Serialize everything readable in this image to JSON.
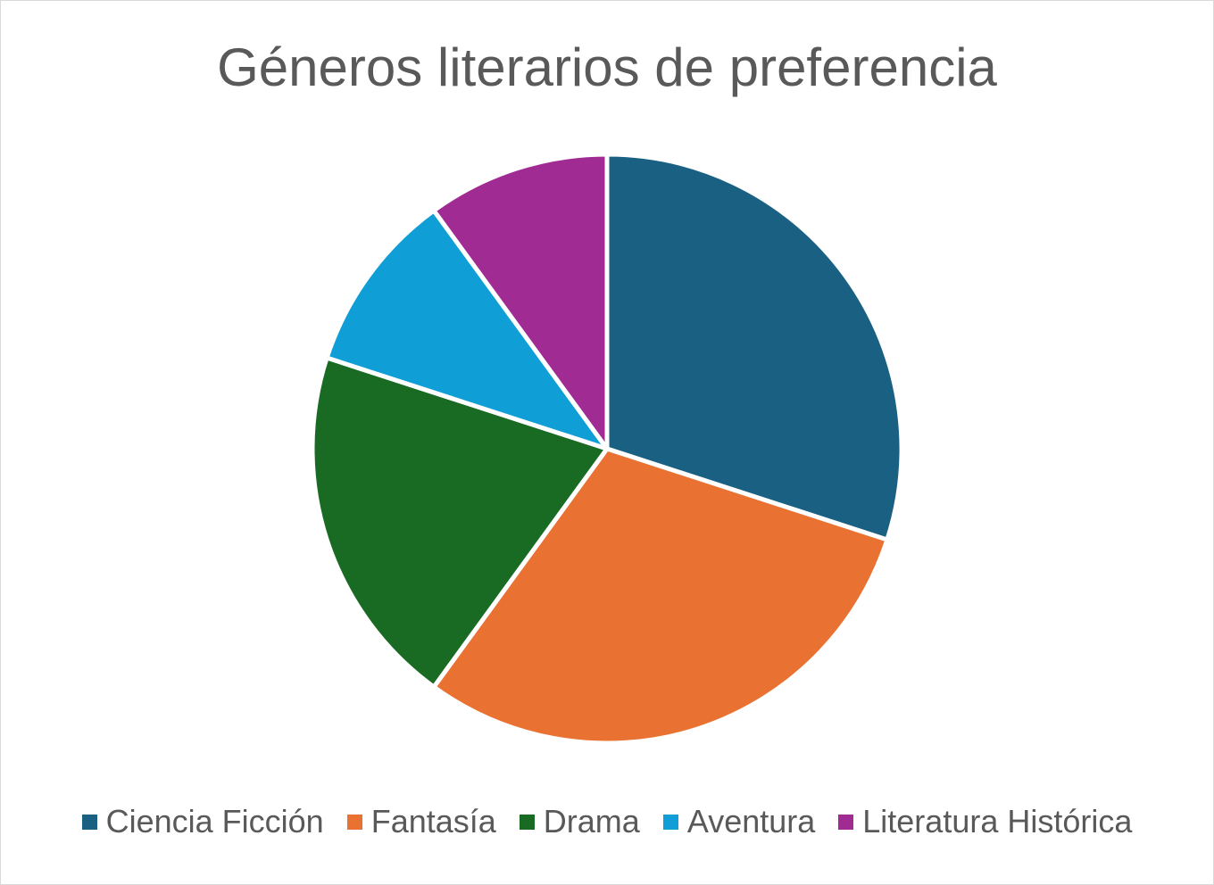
{
  "chart_data": {
    "type": "pie",
    "title": "Géneros literarios de preferencia",
    "categories": [
      "Ciencia Ficción",
      "Fantasía",
      "Drama",
      "Aventura",
      "Literatura Histórica"
    ],
    "values": [
      30,
      30,
      20,
      10,
      10
    ],
    "colors": [
      "#1a6082",
      "#e97132",
      "#196b24",
      "#0f9ed5",
      "#a02b93"
    ],
    "start_angle_deg": 0,
    "direction": "clockwise",
    "legend": "bottom",
    "slice_border_color": "#ffffff"
  }
}
